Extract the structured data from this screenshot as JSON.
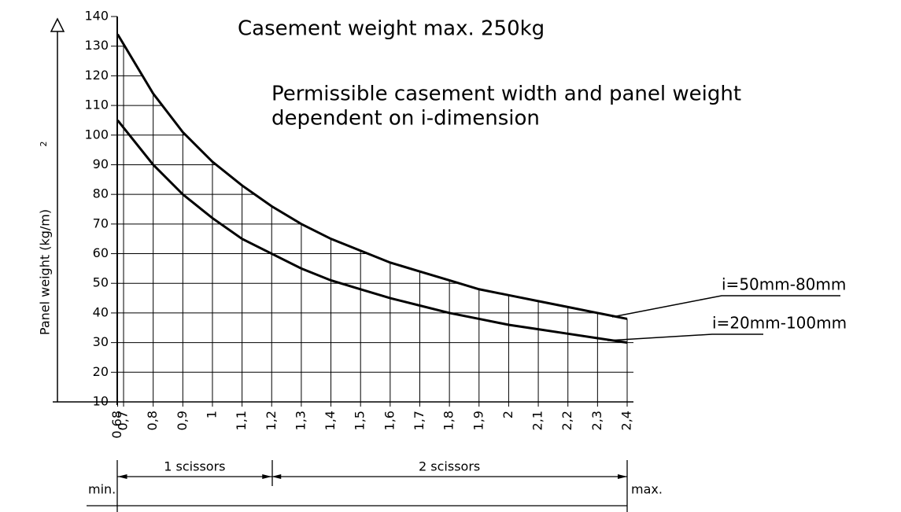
{
  "chart_data": {
    "type": "line",
    "title": "Casement weight max. 250kg",
    "subtitle": [
      "Permissible casement width and panel weight",
      "dependent on i-dimension"
    ],
    "y_label": "Panel weight (kg/m)",
    "y_label_exponent": "2",
    "x": [
      0.68,
      0.8,
      0.9,
      1.0,
      1.1,
      1.2,
      1.3,
      1.4,
      1.5,
      1.6,
      1.7,
      1.8,
      1.9,
      2.0,
      2.1,
      2.2,
      2.3,
      2.4
    ],
    "series": [
      {
        "name": "i=50mm-80mm",
        "color": "#000000",
        "values": [
          134,
          114,
          101,
          91,
          83,
          76,
          70,
          65,
          61,
          57,
          54,
          51,
          48,
          46,
          44,
          42,
          40,
          38
        ]
      },
      {
        "name": "i=20mm-100mm",
        "color": "#000000",
        "values": [
          105,
          90,
          80,
          72,
          65,
          60,
          55,
          51,
          48,
          45,
          42.5,
          40,
          38,
          36,
          34.5,
          33,
          31.5,
          30
        ]
      }
    ],
    "xlim": [
      0.68,
      2.4
    ],
    "ylim": [
      10,
      140
    ],
    "xticks": [
      {
        "value": 0.68,
        "label": "0,68"
      },
      {
        "value": 0.7,
        "label": "0,7"
      },
      {
        "value": 0.8,
        "label": "0,8"
      },
      {
        "value": 0.9,
        "label": "0,9"
      },
      1,
      {
        "value": 1.1,
        "label": "1,1"
      },
      {
        "value": 1.2,
        "label": "1,2"
      },
      {
        "value": 1.3,
        "label": "1,3"
      },
      {
        "value": 1.4,
        "label": "1,4"
      },
      {
        "value": 1.5,
        "label": "1,5"
      },
      {
        "value": 1.6,
        "label": "1,6"
      },
      {
        "value": 1.7,
        "label": "1,7"
      },
      {
        "value": 1.8,
        "label": "1,8"
      },
      {
        "value": 1.9,
        "label": "1,9"
      },
      2,
      {
        "value": 2.1,
        "label": "2,1"
      },
      {
        "value": 2.2,
        "label": "2,2"
      },
      {
        "value": 2.3,
        "label": "2,3"
      },
      {
        "value": 2.4,
        "label": "2,4"
      }
    ],
    "yticks": [
      10,
      20,
      30,
      40,
      50,
      60,
      70,
      80,
      90,
      100,
      110,
      120,
      130,
      140
    ],
    "grid": true,
    "ranges": [
      {
        "label": "1 scissors",
        "from": 0.68,
        "to": 1.2
      },
      {
        "label": "2 scissors",
        "from": 1.2,
        "to": 2.4
      }
    ],
    "min_label": "min.",
    "max_label": "max."
  }
}
